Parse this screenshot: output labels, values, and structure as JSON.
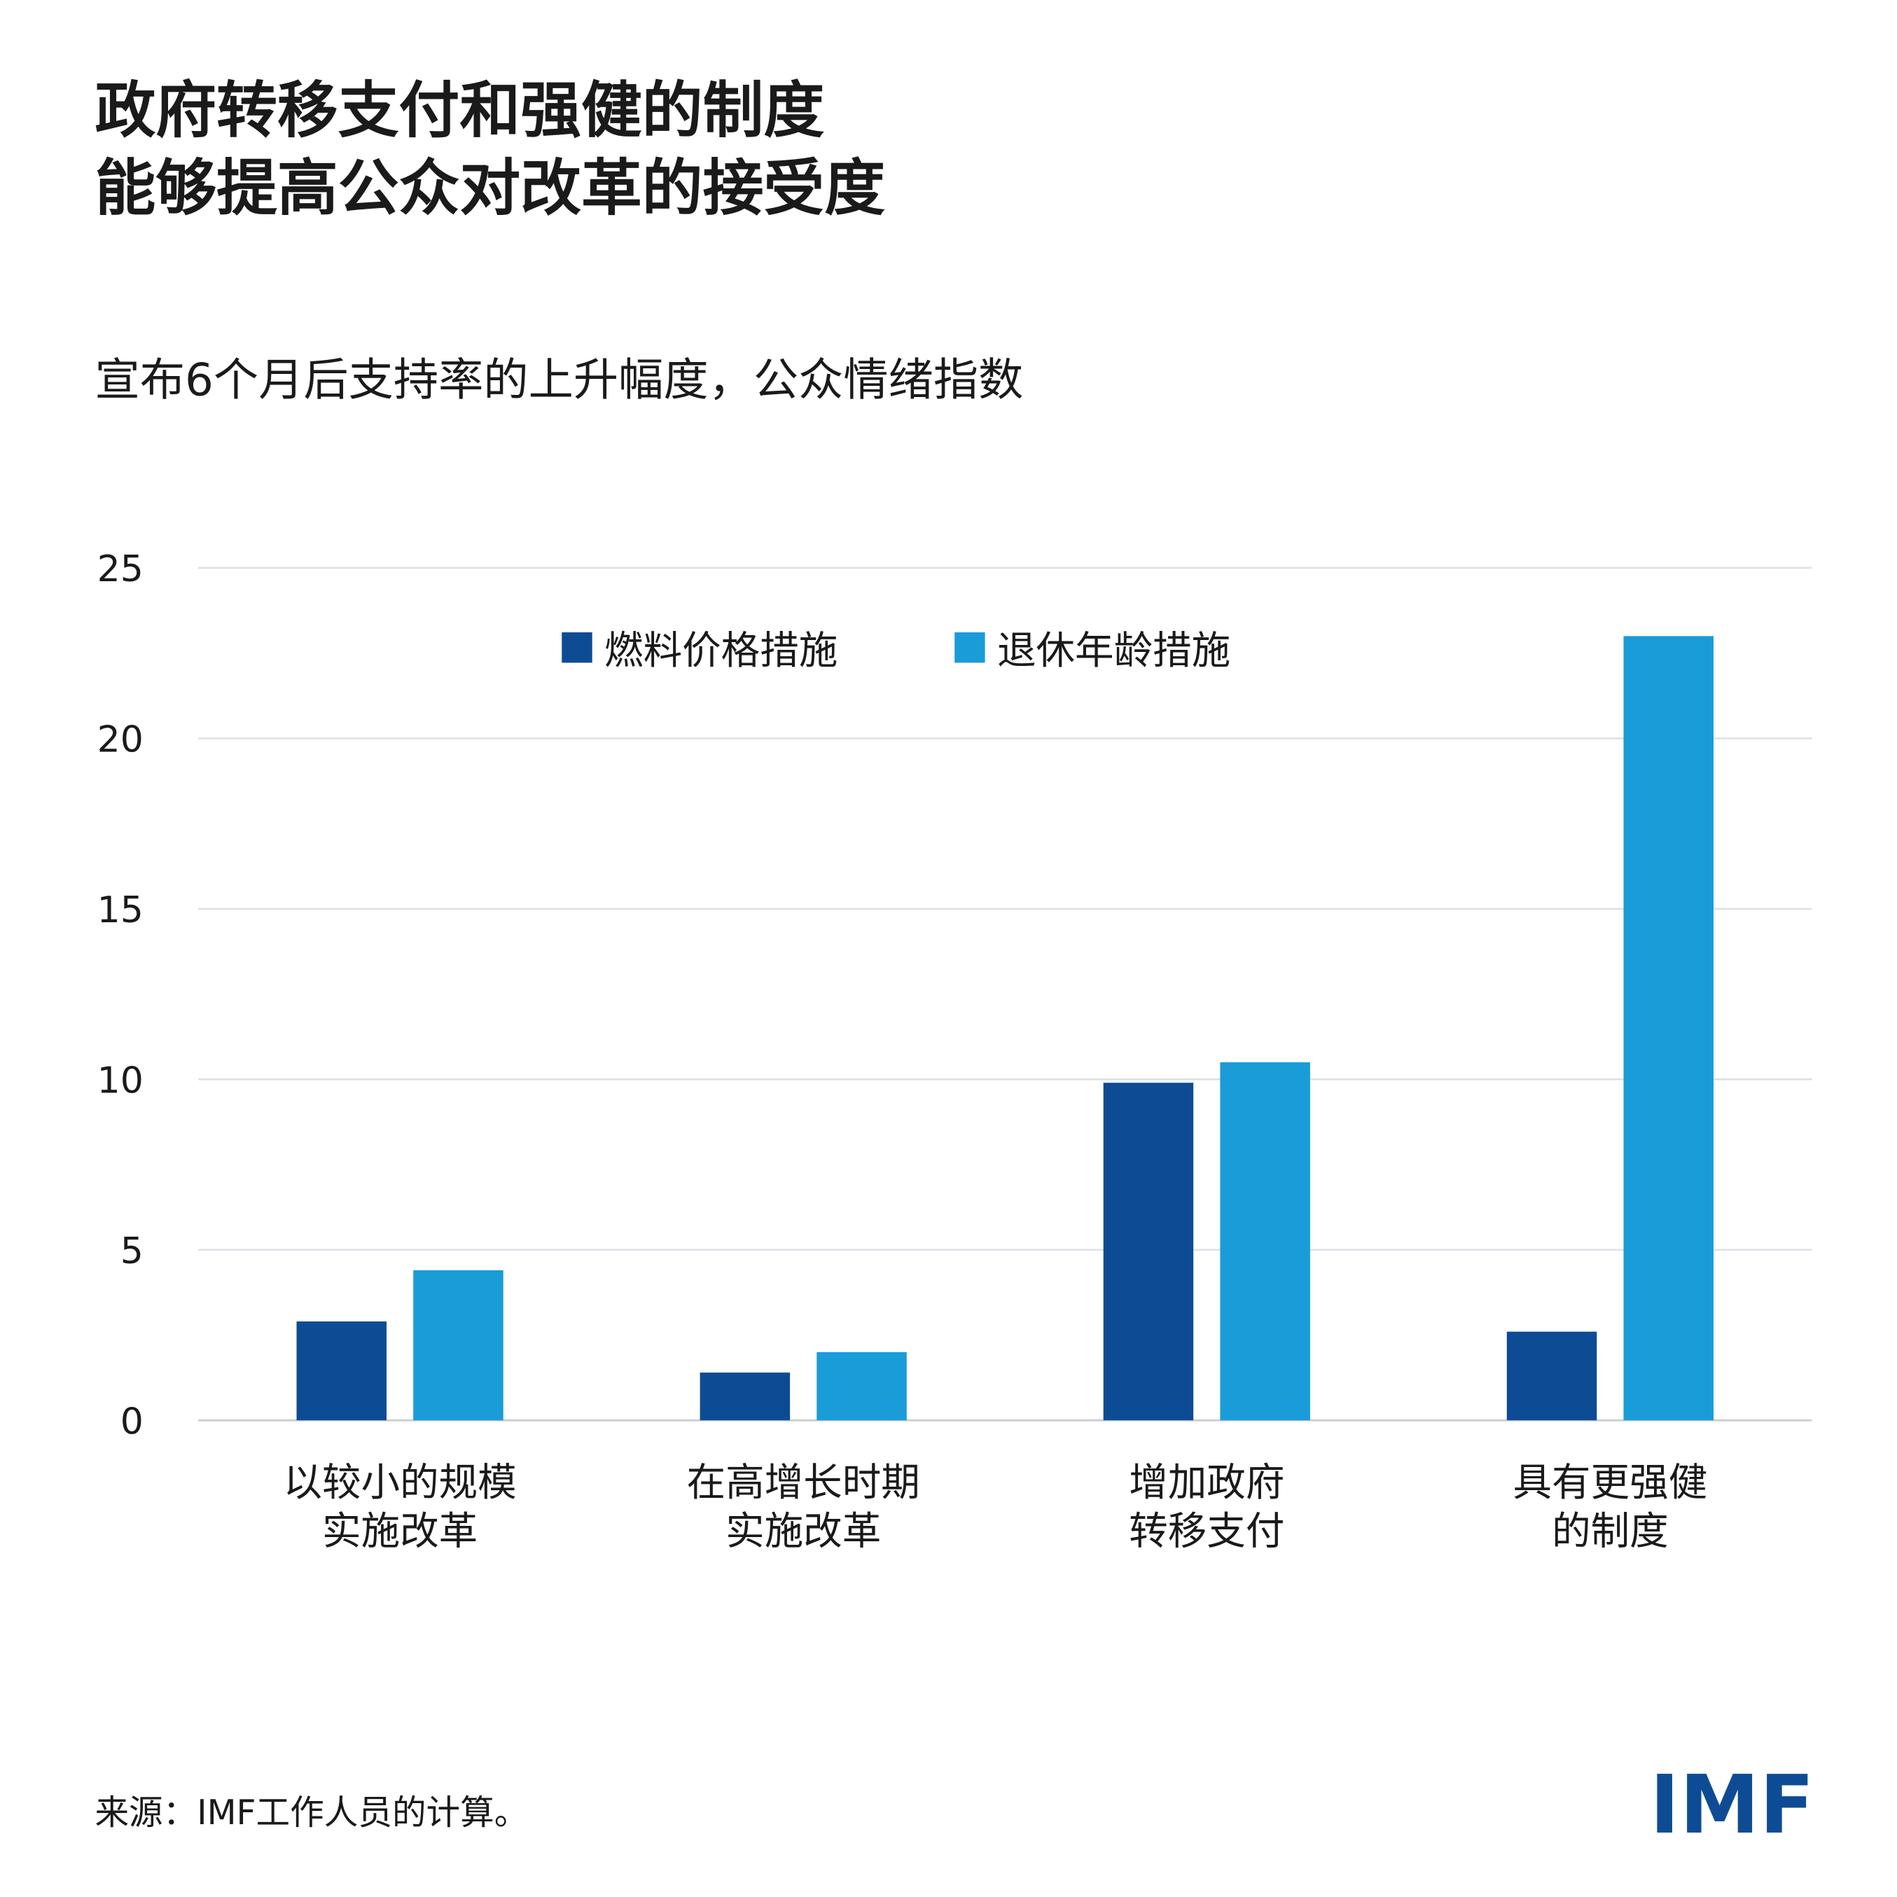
{
  "chart_data": {
    "type": "bar",
    "title": "政府转移支付和强健的制度\n能够提高公众对改革的接受度",
    "subtitle": "宣布6个月后支持率的上升幅度，公众情绪指数",
    "categories": [
      "以较小的规模\n实施改革",
      "在高增长时期\n实施改革",
      "增加政府\n转移支付",
      "具有更强健\n的制度"
    ],
    "series": [
      {
        "name": "燃料价格措施",
        "color": "#0d4c94",
        "values": [
          2.9,
          1.4,
          9.9,
          2.6
        ]
      },
      {
        "name": "退休年龄措施",
        "color": "#1a9cd8",
        "values": [
          4.4,
          2.0,
          10.5,
          23.0
        ]
      }
    ],
    "ylim": [
      0,
      25
    ],
    "yticks": [
      0,
      5,
      10,
      15,
      20,
      25
    ],
    "grid": true,
    "legend": "top",
    "source": "来源：IMF工作人员的计算。",
    "logo": "IMF"
  }
}
